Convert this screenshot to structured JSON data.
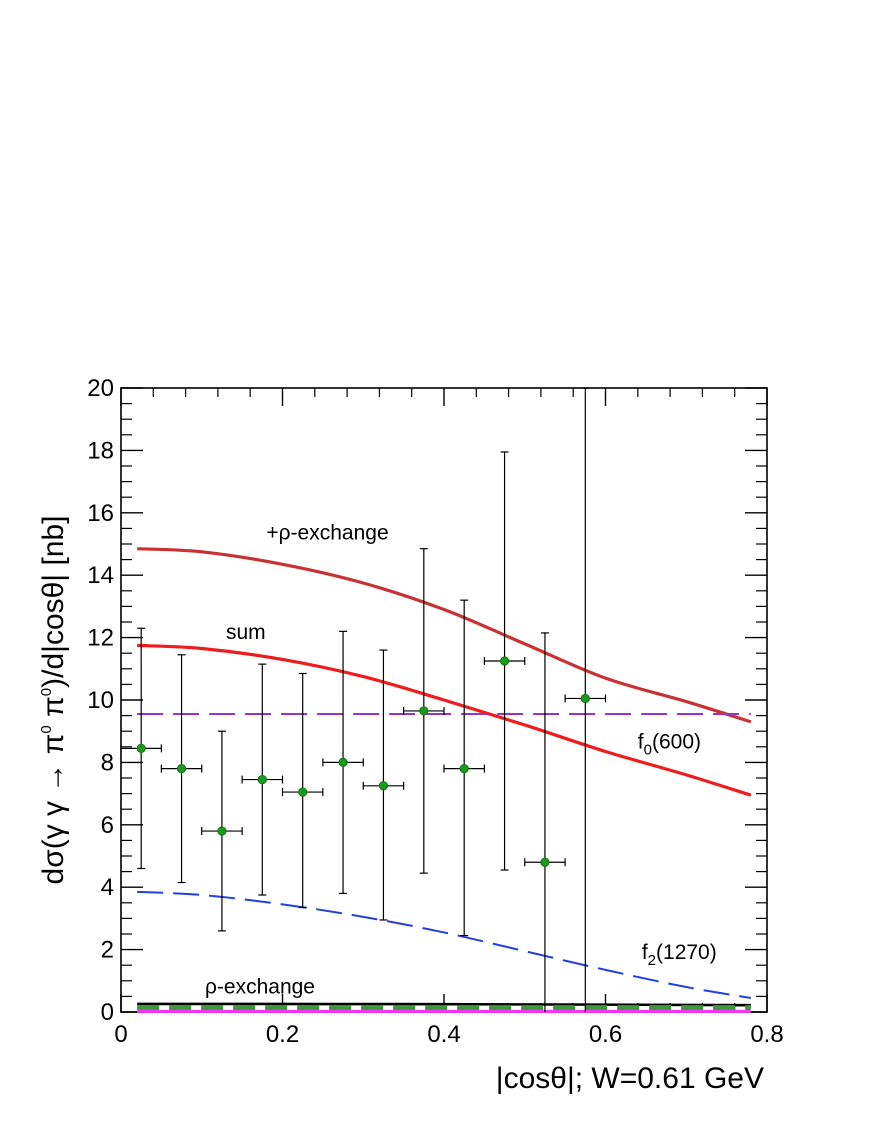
{
  "chart_data": {
    "type": "scatter",
    "title": "",
    "xlabel": "|cosθ|; W=0.61 GeV",
    "ylabel_parts": {
      "pre": "dσ(γ γ → π",
      "sup1": "0",
      "mid": " π",
      "sup2": "0",
      "post": ")/d|cosθ| [nb]"
    },
    "xlim": [
      0,
      0.8
    ],
    "ylim": [
      0,
      20
    ],
    "xticks": [
      0,
      0.2,
      0.4,
      0.6,
      0.8
    ],
    "xtick_labels": [
      "0",
      "0.2",
      "0.4",
      "0.6",
      "0.8"
    ],
    "yticks": [
      0,
      2,
      4,
      6,
      8,
      10,
      12,
      14,
      16,
      18,
      20
    ],
    "ytick_labels": [
      "0",
      "2",
      "4",
      "6",
      "8",
      "10",
      "12",
      "14",
      "16",
      "18",
      "20"
    ],
    "grid": false,
    "data_points": {
      "name": "data",
      "color": "#1a9a1a",
      "x": [
        0.025,
        0.075,
        0.125,
        0.175,
        0.225,
        0.275,
        0.325,
        0.375,
        0.425,
        0.475,
        0.525,
        0.575
      ],
      "y": [
        8.45,
        7.8,
        5.8,
        7.45,
        7.05,
        8.0,
        7.25,
        9.65,
        7.8,
        11.25,
        4.8,
        10.05
      ],
      "xerr": [
        0.025,
        0.025,
        0.025,
        0.025,
        0.025,
        0.025,
        0.025,
        0.025,
        0.025,
        0.025,
        0.025,
        0.025
      ],
      "y_low": [
        4.6,
        4.15,
        2.6,
        3.75,
        3.35,
        3.8,
        2.95,
        4.45,
        2.45,
        4.55,
        0.0,
        0.0
      ],
      "y_high": [
        12.3,
        11.45,
        9.0,
        11.15,
        10.85,
        12.2,
        11.6,
        14.85,
        13.2,
        17.95,
        12.15,
        20.0
      ]
    },
    "series": [
      {
        "name": "+ρ-exchange",
        "color": "#c83232",
        "style": "solid",
        "x": [
          0.02,
          0.1,
          0.2,
          0.3,
          0.4,
          0.5,
          0.6,
          0.7,
          0.78
        ],
        "y": [
          14.85,
          14.75,
          14.35,
          13.75,
          12.9,
          11.8,
          10.7,
          9.95,
          9.3
        ]
      },
      {
        "name": "sum",
        "color": "#ee1c1c",
        "style": "solid",
        "x": [
          0.02,
          0.1,
          0.2,
          0.3,
          0.4,
          0.5,
          0.6,
          0.7,
          0.78
        ],
        "y": [
          11.75,
          11.65,
          11.3,
          10.75,
          10.0,
          9.2,
          8.35,
          7.6,
          6.95
        ]
      },
      {
        "name": "f0(600)",
        "color": "#9932cc",
        "style": "dashed",
        "x": [
          0.02,
          0.78
        ],
        "y": [
          9.55,
          9.55
        ]
      },
      {
        "name": "f2(1270)",
        "color": "#2040e0",
        "style": "dashed",
        "x": [
          0.02,
          0.1,
          0.2,
          0.3,
          0.4,
          0.5,
          0.6,
          0.7,
          0.78
        ],
        "y": [
          3.85,
          3.75,
          3.45,
          3.05,
          2.55,
          1.95,
          1.35,
          0.8,
          0.45
        ]
      },
      {
        "name": "ρ-exchange",
        "color": "#000000",
        "style": "solid",
        "x": [
          0.02,
          0.4,
          0.78
        ],
        "y": [
          0.26,
          0.25,
          0.22
        ]
      },
      {
        "name": "ρ-exchange (dashed)",
        "color": "#3a9a3a",
        "style": "dashed",
        "x": [
          0.02,
          0.78
        ],
        "y": [
          0.14,
          0.14
        ]
      },
      {
        "name": "baseline",
        "color": "#ff33ff",
        "style": "solid",
        "x": [
          0.02,
          0.78
        ],
        "y": [
          0.02,
          0.02
        ]
      }
    ],
    "annotations": [
      {
        "id": "plus-rho",
        "text": "+ρ-exchange",
        "x": 0.18,
        "y": 15.15
      },
      {
        "id": "sum",
        "text": "sum",
        "x": 0.13,
        "y": 11.95
      },
      {
        "id": "f0",
        "base": "f",
        "sub": "0",
        "rest": "(600)",
        "x": 0.64,
        "y": 8.45
      },
      {
        "id": "f2",
        "base": "f",
        "sub": "2",
        "rest": "(1270)",
        "x": 0.645,
        "y": 1.7
      },
      {
        "id": "rho",
        "text": "ρ-exchange",
        "x": 0.104,
        "y": 0.6
      }
    ]
  }
}
